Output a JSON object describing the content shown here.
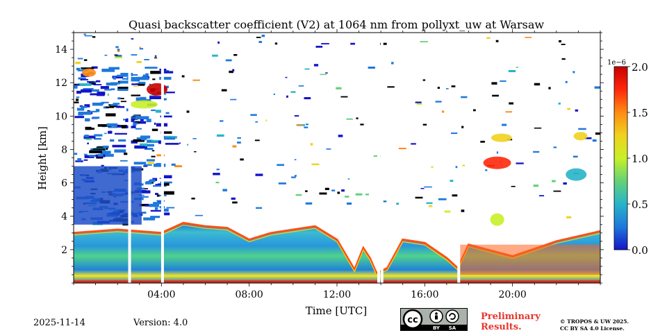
{
  "chart_data": {
    "type": "heatmap",
    "title": "Quasi backscatter coefficient (V2) at 1064 nm from pollyxt_uw at Warsaw",
    "xlabel": "Time [UTC]",
    "ylabel": "Height [km]",
    "xlim_hours": [
      0,
      24
    ],
    "ylim_km": [
      0,
      15
    ],
    "x_ticks": [
      {
        "value": 4,
        "label": "04:00"
      },
      {
        "value": 8,
        "label": "08:00"
      },
      {
        "value": 12,
        "label": "12:00"
      },
      {
        "value": 16,
        "label": "16:00"
      },
      {
        "value": 20,
        "label": "20:00"
      }
    ],
    "y_ticks": [
      {
        "value": 2,
        "label": "2"
      },
      {
        "value": 4,
        "label": "4"
      },
      {
        "value": 6,
        "label": "6"
      },
      {
        "value": 8,
        "label": "8"
      },
      {
        "value": 10,
        "label": "10"
      },
      {
        "value": 12,
        "label": "12"
      },
      {
        "value": 14,
        "label": "14"
      }
    ],
    "colorbar": {
      "exponent": "1e−6",
      "range": [
        0.0,
        2.0
      ],
      "ticks": [
        {
          "value": 0.0,
          "label": "0.0"
        },
        {
          "value": 0.5,
          "label": "0.5"
        },
        {
          "value": 1.0,
          "label": "1.0"
        },
        {
          "value": 1.5,
          "label": "1.5"
        },
        {
          "value": 2.0,
          "label": "2.0"
        }
      ],
      "colors": [
        "#1414c8",
        "#1e78dc",
        "#28b4c8",
        "#64d278",
        "#c8f028",
        "#f0d21e",
        "#ff8c14",
        "#ff280a",
        "#c80000"
      ]
    },
    "gaps_hours": [
      2.55,
      4.05,
      13.9,
      14.05,
      17.55
    ],
    "boundary_layer_top_km": [
      [
        0,
        3.0
      ],
      [
        2,
        3.2
      ],
      [
        4,
        3.0
      ],
      [
        5,
        3.6
      ],
      [
        6,
        3.4
      ],
      [
        7,
        3.3
      ],
      [
        8,
        2.6
      ],
      [
        9,
        3.0
      ],
      [
        10,
        3.2
      ],
      [
        11,
        3.4
      ],
      [
        12,
        2.6
      ],
      [
        12.8,
        0.8
      ],
      [
        13.2,
        2.1
      ],
      [
        13.5,
        1.5
      ],
      [
        13.8,
        0.6
      ],
      [
        14.3,
        0.9
      ],
      [
        15,
        2.6
      ],
      [
        16,
        2.4
      ],
      [
        17,
        1.5
      ],
      [
        17.5,
        0.9
      ],
      [
        18,
        2.3
      ],
      [
        20,
        1.6
      ],
      [
        22,
        2.5
      ],
      [
        24,
        3.1
      ]
    ],
    "upper_clouds": [
      {
        "time_h": 0.7,
        "height_km": 12.6,
        "value": 1.4
      },
      {
        "time_h": 3.8,
        "height_km": 11.6,
        "value": 1.9
      },
      {
        "time_h": 3.2,
        "height_km": 10.7,
        "value": 1.1
      },
      {
        "time_h": 19.3,
        "height_km": 3.8,
        "value": 1.0
      },
      {
        "time_h": 19.5,
        "height_km": 8.7,
        "value": 1.3
      },
      {
        "time_h": 19.3,
        "height_km": 7.2,
        "value": 1.8
      },
      {
        "time_h": 23.1,
        "height_km": 8.8,
        "value": 1.2
      },
      {
        "time_h": 22.9,
        "height_km": 6.5,
        "value": 0.6
      }
    ]
  },
  "footer": {
    "date": "2025-11-14",
    "version": "Version: 4.0",
    "prelim_line1": "Preliminary",
    "prelim_line2": "Results.",
    "license_line1": "© TROPOS & UW 2025.",
    "license_line2": "CC BY SA 4.0 License.",
    "cc_text": "cc",
    "by_text": "BY",
    "sa_text": "SA"
  }
}
